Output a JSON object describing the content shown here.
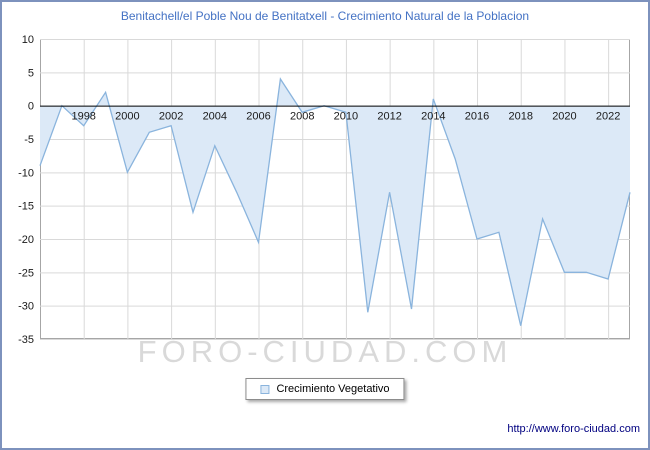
{
  "header": {
    "title": "Benitachell/el Poble Nou de Benitatxell - Crecimiento Natural de la Poblacion",
    "title_color": "#4472c4"
  },
  "chart_data": {
    "type": "area",
    "title": "Benitachell/el Poble Nou de Benitatxell - Crecimiento Natural de la Poblacion",
    "x": [
      1996,
      1997,
      1998,
      1999,
      2000,
      2001,
      2002,
      2003,
      2004,
      2005,
      2006,
      2007,
      2008,
      2009,
      2010,
      2011,
      2012,
      2013,
      2014,
      2015,
      2016,
      2017,
      2018,
      2019,
      2020,
      2021,
      2022,
      2023
    ],
    "series": [
      {
        "name": "Crecimiento Vegetativo",
        "values": [
          -9,
          0,
          -3,
          2,
          -10,
          -4,
          -3,
          -16,
          -6,
          -13,
          -20.5,
          4,
          -1,
          0,
          -1,
          -31,
          -13,
          -30.5,
          1,
          -8,
          -20,
          -19,
          -33,
          -17,
          -25,
          -25,
          -26,
          -13
        ]
      }
    ],
    "xlabel": "",
    "ylabel": "",
    "ylim": [
      -35,
      10
    ],
    "baseline": 0,
    "y_ticks": [
      10,
      5,
      0,
      -5,
      -10,
      -15,
      -20,
      -25,
      -30,
      -35
    ],
    "x_tick_labels": [
      "1998",
      "2000",
      "2002",
      "2004",
      "2006",
      "2008",
      "2010",
      "2012",
      "2014",
      "2016",
      "2018",
      "2020",
      "2022"
    ],
    "grid": true,
    "legend_position": "bottom-center",
    "colors": {
      "line": "#8ab4dd",
      "fill": "#dce9f7",
      "grid": "#d9d9d9",
      "zero_axis": "#000000",
      "plot_border": "#a6a6a6",
      "tick_text": "#1a1a1a"
    }
  },
  "legend": {
    "label": "Crecimiento Vegetativo"
  },
  "watermark": {
    "text": "FORO-CIUDAD.COM"
  },
  "footer": {
    "url": "http://www.foro-ciudad.com"
  }
}
